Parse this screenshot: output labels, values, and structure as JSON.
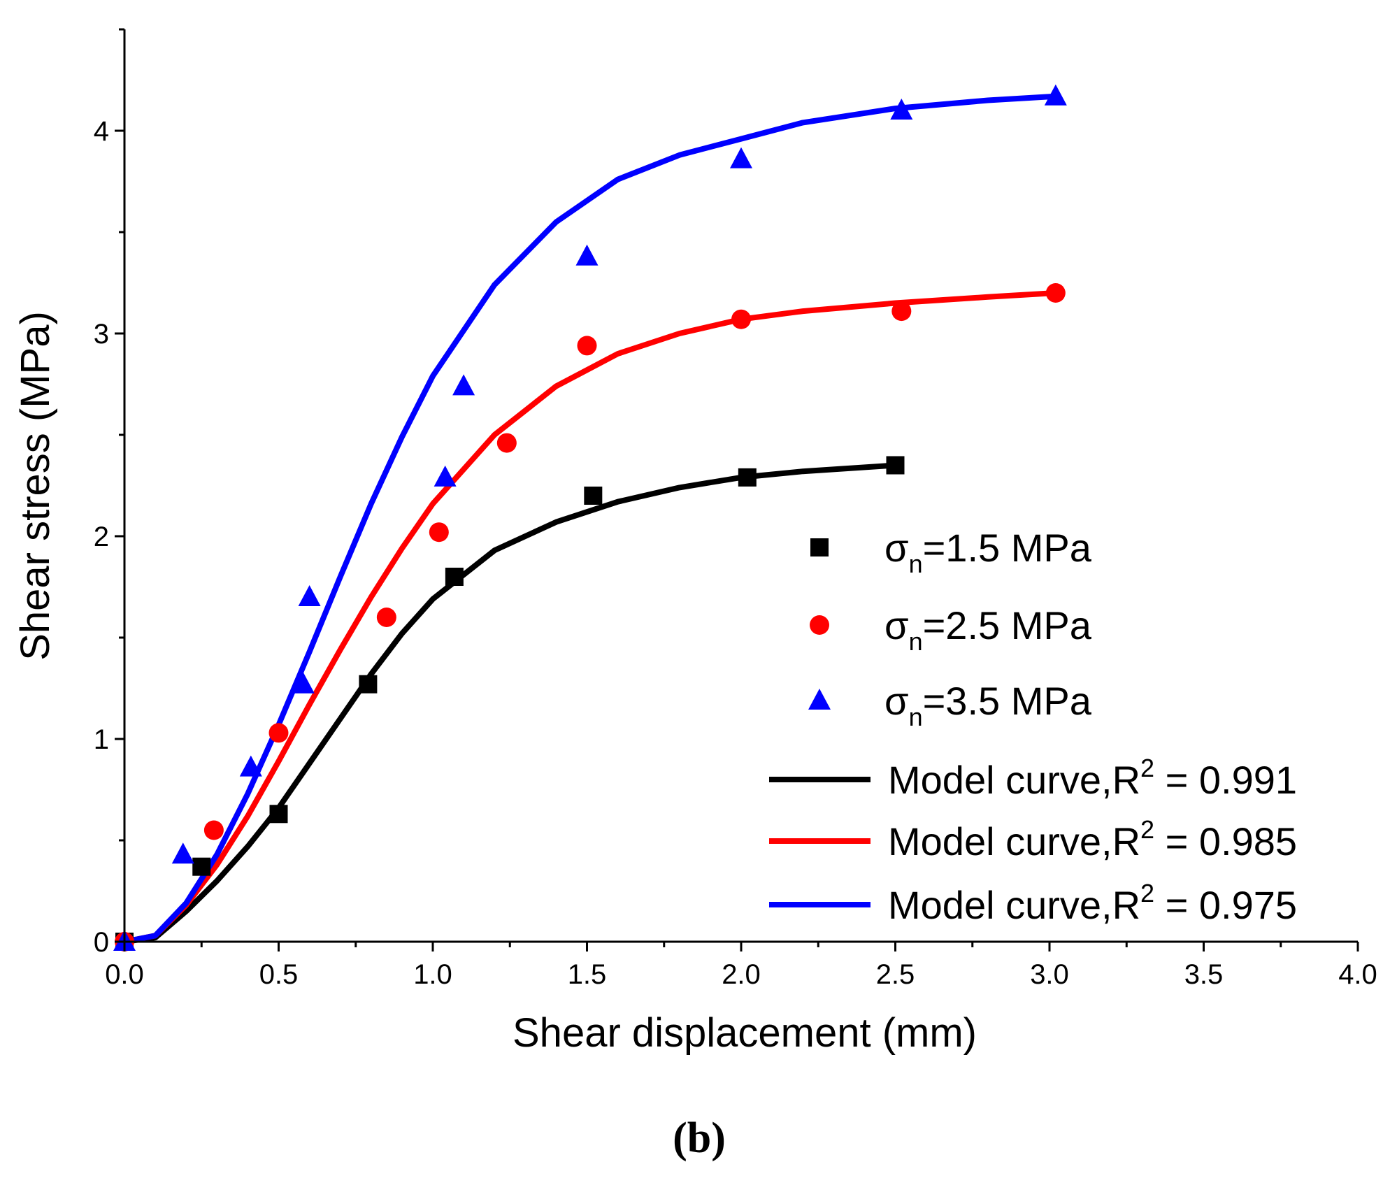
{
  "chart_data": {
    "type": "scatter",
    "panel_label": "(b)",
    "xlabel": "Shear displacement (mm)",
    "ylabel": "Shear stress (MPa)",
    "xlim": [
      0,
      4.0
    ],
    "ylim": [
      0,
      4.5
    ],
    "x_ticks": [
      0.0,
      0.5,
      1.0,
      1.5,
      2.0,
      2.5,
      3.0,
      3.5,
      4.0
    ],
    "x_tick_labels": [
      "0.0",
      "0.5",
      "1.0",
      "1.5",
      "2.0",
      "2.5",
      "3.0",
      "3.5",
      "4.0"
    ],
    "y_ticks": [
      0,
      1,
      2,
      3,
      4
    ],
    "y_tick_labels": [
      "0",
      "1",
      "2",
      "3",
      "4"
    ],
    "grid": false,
    "legend_position": "center-right",
    "series": [
      {
        "name": "σn=1.5 MPa",
        "legend_symbol": "σ",
        "legend_sub": "n",
        "legend_rest": "=1.5 MPa",
        "marker": "square",
        "color": "#000000",
        "x": [
          0.0,
          0.25,
          0.5,
          0.79,
          1.07,
          1.52,
          2.02,
          2.5
        ],
        "y": [
          0.0,
          0.37,
          0.63,
          1.27,
          1.8,
          2.2,
          2.29,
          2.35
        ]
      },
      {
        "name": "σn=2.5 MPa",
        "legend_symbol": "σ",
        "legend_sub": "n",
        "legend_rest": "=2.5 MPa",
        "marker": "circle",
        "color": "#ff0000",
        "x": [
          0.0,
          0.29,
          0.5,
          0.85,
          1.02,
          1.24,
          1.5,
          2.0,
          2.52,
          3.02
        ],
        "y": [
          0.0,
          0.55,
          1.03,
          1.6,
          2.02,
          2.46,
          2.94,
          3.07,
          3.11,
          3.2
        ]
      },
      {
        "name": "σn=3.5 MPa",
        "legend_symbol": "σ",
        "legend_sub": "n",
        "legend_rest": "=3.5 MPa",
        "marker": "triangle",
        "color": "#0000ff",
        "x": [
          0.0,
          0.19,
          0.41,
          0.58,
          0.6,
          1.04,
          1.1,
          1.5,
          2.0,
          2.52,
          3.02
        ],
        "y": [
          0.0,
          0.43,
          0.86,
          1.27,
          1.7,
          2.29,
          2.74,
          3.38,
          3.86,
          4.1,
          4.17
        ]
      }
    ],
    "model_curves": [
      {
        "label_prefix": "Model curve,R",
        "label_sup": "2",
        "label_suffix": " = 0.991",
        "color": "#000000",
        "x_end": 2.5,
        "x": [
          0.0,
          0.1,
          0.2,
          0.3,
          0.4,
          0.5,
          0.6,
          0.7,
          0.8,
          0.9,
          1.0,
          1.2,
          1.4,
          1.6,
          1.8,
          2.0,
          2.2,
          2.5
        ],
        "y": [
          0.0,
          0.02,
          0.15,
          0.3,
          0.47,
          0.66,
          0.88,
          1.1,
          1.32,
          1.52,
          1.69,
          1.93,
          2.07,
          2.17,
          2.24,
          2.29,
          2.32,
          2.35
        ]
      },
      {
        "label_prefix": "Model curve,R",
        "label_sup": "2",
        "label_suffix": " = 0.985",
        "color": "#ff0000",
        "x_end": 3.02,
        "x": [
          0.0,
          0.1,
          0.2,
          0.3,
          0.4,
          0.5,
          0.6,
          0.7,
          0.8,
          0.9,
          1.0,
          1.2,
          1.4,
          1.6,
          1.8,
          2.0,
          2.2,
          2.5,
          2.8,
          3.02
        ],
        "y": [
          0.0,
          0.03,
          0.18,
          0.38,
          0.62,
          0.89,
          1.17,
          1.44,
          1.7,
          1.94,
          2.16,
          2.5,
          2.74,
          2.9,
          3.0,
          3.07,
          3.11,
          3.15,
          3.18,
          3.2
        ]
      },
      {
        "label_prefix": "Model curve,R",
        "label_sup": "2",
        "label_suffix": " = 0.975",
        "color": "#0000ff",
        "x_end": 3.02,
        "x": [
          0.0,
          0.1,
          0.2,
          0.3,
          0.4,
          0.5,
          0.6,
          0.7,
          0.8,
          0.9,
          1.0,
          1.2,
          1.4,
          1.6,
          1.8,
          2.0,
          2.2,
          2.5,
          2.8,
          3.02
        ],
        "y": [
          0.0,
          0.03,
          0.19,
          0.43,
          0.73,
          1.07,
          1.43,
          1.8,
          2.16,
          2.49,
          2.79,
          3.24,
          3.55,
          3.76,
          3.88,
          3.96,
          4.04,
          4.11,
          4.15,
          4.17
        ]
      }
    ]
  }
}
